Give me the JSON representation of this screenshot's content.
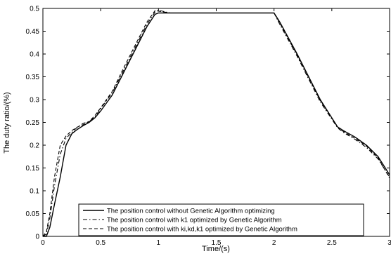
{
  "chart_data": {
    "type": "line",
    "title": "",
    "xlabel": "Time/(s)",
    "ylabel": "The duty ratio/(%)",
    "xlim": [
      0,
      3
    ],
    "ylim": [
      0,
      0.5
    ],
    "xticks": [
      0,
      0.5,
      1,
      1.5,
      2,
      2.5,
      3
    ],
    "xtick_labels": [
      "0",
      "0.5",
      "1",
      "1.5",
      "2",
      "2.5",
      "3"
    ],
    "yticks": [
      0,
      0.05,
      0.1,
      0.15,
      0.2,
      0.25,
      0.3,
      0.35,
      0.4,
      0.45,
      0.5
    ],
    "ytick_labels": [
      "0",
      "0.05",
      "0.1",
      "0.15",
      "0.2",
      "0.25",
      "0.3",
      "0.35",
      "0.4",
      "0.45",
      "0.5"
    ],
    "grid": false,
    "legend_position": "bottom-center",
    "series": [
      {
        "name": "The position control without Genetic Algorithm optimizing",
        "style": "solid",
        "color": "#000000",
        "x": [
          0,
          0.03,
          0.06,
          0.1,
          0.15,
          0.2,
          0.25,
          0.3,
          0.35,
          0.4,
          0.45,
          0.5,
          0.6,
          0.7,
          0.8,
          0.9,
          0.97,
          1.0,
          1.1,
          1.5,
          1.99,
          2.0,
          2.05,
          2.2,
          2.4,
          2.55,
          2.6,
          2.7,
          2.8,
          2.9,
          3.0
        ],
        "y": [
          0,
          0.0,
          0.02,
          0.07,
          0.13,
          0.2,
          0.225,
          0.235,
          0.243,
          0.25,
          0.26,
          0.275,
          0.31,
          0.36,
          0.41,
          0.46,
          0.487,
          0.49,
          0.49,
          0.49,
          0.49,
          0.49,
          0.47,
          0.4,
          0.3,
          0.24,
          0.232,
          0.218,
          0.2,
          0.175,
          0.135
        ]
      },
      {
        "name": "The position control with k1 optimized by Genetic Algorithm",
        "style": "dashdot",
        "color": "#000000",
        "x": [
          0,
          0.03,
          0.06,
          0.1,
          0.15,
          0.2,
          0.25,
          0.3,
          0.35,
          0.4,
          0.45,
          0.5,
          0.6,
          0.7,
          0.8,
          0.9,
          0.97,
          1.0,
          1.1,
          1.5,
          1.99,
          2.0,
          2.05,
          2.2,
          2.4,
          2.55,
          2.6,
          2.7,
          2.8,
          2.9,
          3.0
        ],
        "y": [
          0,
          0.005,
          0.04,
          0.11,
          0.18,
          0.215,
          0.228,
          0.24,
          0.248,
          0.252,
          0.262,
          0.28,
          0.315,
          0.365,
          0.415,
          0.465,
          0.492,
          0.496,
          0.49,
          0.49,
          0.49,
          0.49,
          0.465,
          0.395,
          0.295,
          0.238,
          0.228,
          0.213,
          0.195,
          0.17,
          0.13
        ]
      },
      {
        "name": "The position control with ki,kd,k1 optimized by Genetic Algorithm",
        "style": "dashed",
        "color": "#000000",
        "x": [
          0,
          0.03,
          0.06,
          0.1,
          0.15,
          0.2,
          0.25,
          0.3,
          0.35,
          0.4,
          0.45,
          0.5,
          0.6,
          0.7,
          0.8,
          0.9,
          0.97,
          1.0,
          1.1,
          1.5,
          1.99,
          2.0,
          2.05,
          2.2,
          2.4,
          2.55,
          2.6,
          2.7,
          2.8,
          2.9,
          3.0
        ],
        "y": [
          0,
          0.01,
          0.05,
          0.13,
          0.2,
          0.22,
          0.232,
          0.24,
          0.245,
          0.252,
          0.265,
          0.282,
          0.318,
          0.37,
          0.42,
          0.47,
          0.495,
          0.494,
          0.49,
          0.49,
          0.49,
          0.49,
          0.468,
          0.398,
          0.298,
          0.24,
          0.23,
          0.215,
          0.198,
          0.172,
          0.128
        ]
      }
    ]
  }
}
